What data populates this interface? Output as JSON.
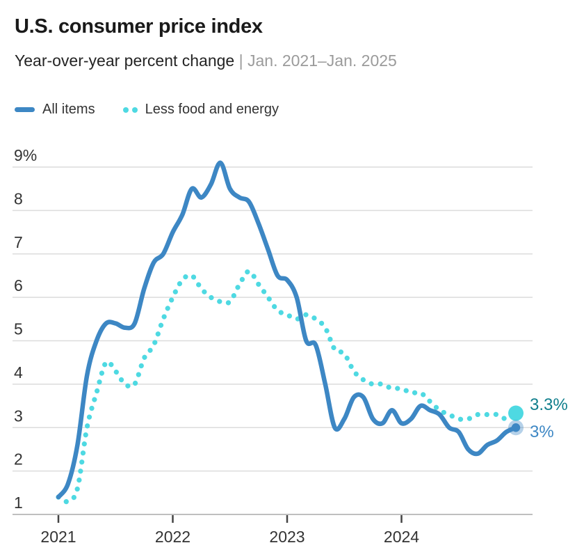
{
  "header": {
    "title": "U.S. consumer price index",
    "subtitle": "Year-over-year percent change",
    "range": "| Jan. 2021–Jan. 2025"
  },
  "legend": {
    "items": [
      {
        "label": "All items"
      },
      {
        "label": "Less food and energy"
      }
    ]
  },
  "chart_data": {
    "type": "line",
    "title": "U.S. consumer price index",
    "subtitle": "Year-over-year percent change",
    "date_range": "Jan. 2021–Jan. 2025",
    "x_start": "2021-01",
    "x_end": "2025-01",
    "x_step": "1 month",
    "x_tick_labels": [
      "2021",
      "2022",
      "2023",
      "2024"
    ],
    "y_ticks": [
      {
        "label": "9%",
        "value": 9
      },
      {
        "label": "8",
        "value": 8
      },
      {
        "label": "7",
        "value": 7
      },
      {
        "label": "6",
        "value": 6
      },
      {
        "label": "5",
        "value": 5
      },
      {
        "label": "4",
        "value": 4
      },
      {
        "label": "3",
        "value": 3
      },
      {
        "label": "2",
        "value": 2
      },
      {
        "label": "1",
        "value": 1
      }
    ],
    "ylim": [
      1,
      9
    ],
    "grid": "horizontal",
    "legend_position": "top",
    "series": [
      {
        "name": "All items",
        "color": "#3d87c4",
        "line_style": "solid",
        "end_label": "3%",
        "end_label_color": "#3d87c4",
        "values": [
          1.4,
          1.7,
          2.6,
          4.2,
          5.0,
          5.4,
          5.4,
          5.3,
          5.4,
          6.2,
          6.8,
          7.0,
          7.5,
          7.9,
          8.5,
          8.3,
          8.6,
          9.1,
          8.5,
          8.3,
          8.2,
          7.7,
          7.1,
          6.5,
          6.4,
          6.0,
          5.0,
          4.9,
          4.0,
          3.0,
          3.2,
          3.7,
          3.7,
          3.2,
          3.1,
          3.4,
          3.1,
          3.2,
          3.5,
          3.4,
          3.3,
          3.0,
          2.9,
          2.5,
          2.4,
          2.6,
          2.7,
          2.9,
          3.0
        ]
      },
      {
        "name": "Less food and energy",
        "color": "#4ed9e2",
        "line_style": "dotted",
        "end_label": "3.3%",
        "end_label_color": "#0f7e8c",
        "values": [
          1.4,
          1.3,
          1.6,
          3.0,
          3.8,
          4.5,
          4.3,
          4.0,
          4.0,
          4.6,
          4.9,
          5.5,
          6.0,
          6.4,
          6.5,
          6.2,
          6.0,
          5.9,
          5.9,
          6.3,
          6.6,
          6.3,
          6.0,
          5.7,
          5.6,
          5.5,
          5.6,
          5.5,
          5.3,
          4.8,
          4.7,
          4.3,
          4.1,
          4.0,
          4.0,
          3.9,
          3.9,
          3.8,
          3.8,
          3.6,
          3.4,
          3.3,
          3.2,
          3.2,
          3.3,
          3.3,
          3.3,
          3.2,
          3.3
        ]
      }
    ]
  }
}
